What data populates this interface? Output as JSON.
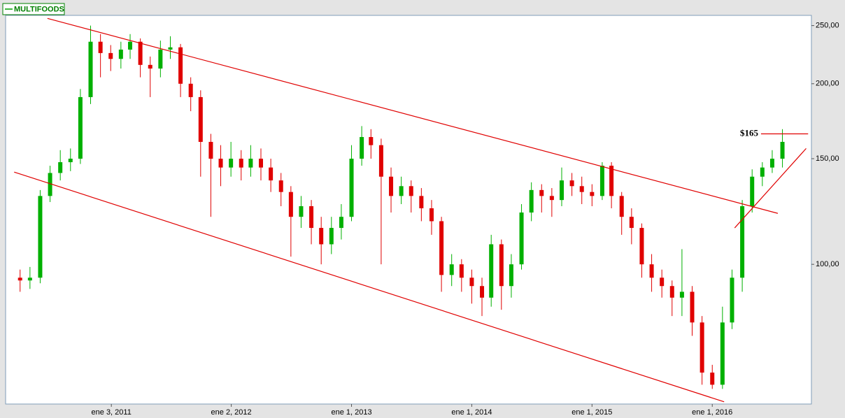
{
  "chart_data": {
    "type": "candlestick",
    "log_scale": true,
    "grid": false,
    "legend": "top-left",
    "series": [
      {
        "name": "MULTIFOODS",
        "color": "#00a000",
        "up_color": "#00b000",
        "down_color": "#e00000",
        "x": [
          "2010-04-01",
          "2010-05-01",
          "2010-06-01",
          "2010-07-01",
          "2010-08-01",
          "2010-09-01",
          "2010-10-01",
          "2010-11-01",
          "2010-12-01",
          "2011-01-01",
          "2011-02-01",
          "2011-03-01",
          "2011-04-01",
          "2011-05-01",
          "2011-06-01",
          "2011-07-01",
          "2011-08-01",
          "2011-09-01",
          "2011-10-01",
          "2011-11-01",
          "2011-12-01",
          "2012-01-01",
          "2012-02-01",
          "2012-03-01",
          "2012-04-01",
          "2012-05-01",
          "2012-06-01",
          "2012-07-01",
          "2012-08-01",
          "2012-09-01",
          "2012-10-01",
          "2012-11-01",
          "2012-12-01",
          "2013-01-01",
          "2013-02-01",
          "2013-03-01",
          "2013-04-01",
          "2013-05-01",
          "2013-06-01",
          "2013-07-01",
          "2013-08-01",
          "2013-09-01",
          "2013-10-01",
          "2013-11-01",
          "2013-12-01",
          "2014-01-01",
          "2014-02-01",
          "2014-03-01",
          "2014-04-01",
          "2014-05-01",
          "2014-06-01",
          "2014-07-01",
          "2014-08-01",
          "2014-09-01",
          "2014-10-01",
          "2014-11-01",
          "2014-12-01",
          "2015-01-01",
          "2015-02-01",
          "2015-03-01",
          "2015-04-01",
          "2015-05-01",
          "2015-06-01",
          "2015-07-01",
          "2015-08-01",
          "2015-09-01",
          "2015-10-01",
          "2015-11-01",
          "2015-12-01",
          "2016-01-01",
          "2016-02-01",
          "2016-03-01",
          "2016-04-01",
          "2016-05-01",
          "2016-06-01",
          "2016-07-01",
          "2016-08-01"
        ],
        "open": [
          95,
          94,
          95,
          130,
          142,
          148,
          150,
          190,
          235,
          225,
          220,
          228,
          235,
          215,
          212,
          228,
          230,
          200,
          190,
          160,
          150,
          145,
          150,
          145,
          150,
          145,
          138,
          132,
          120,
          125,
          115,
          108,
          115,
          120,
          150,
          163,
          158,
          140,
          130,
          135,
          130,
          124,
          118,
          96,
          100,
          95,
          92,
          88,
          108,
          92,
          100,
          122,
          133,
          130,
          128,
          138,
          135,
          132,
          130,
          146,
          130,
          120,
          115,
          100,
          95,
          92,
          88,
          90,
          80,
          66,
          63,
          80,
          95,
          125,
          140,
          145,
          150
        ],
        "high": [
          98,
          99,
          133,
          146,
          155,
          156,
          196,
          250,
          242,
          232,
          235,
          242,
          238,
          222,
          236,
          240,
          233,
          205,
          195,
          165,
          158,
          160,
          155,
          158,
          156,
          150,
          142,
          135,
          130,
          128,
          120,
          120,
          126,
          158,
          170,
          168,
          162,
          145,
          140,
          138,
          134,
          128,
          120,
          104,
          102,
          98,
          95,
          112,
          110,
          104,
          126,
          137,
          136,
          134,
          145,
          142,
          140,
          136,
          148,
          148,
          132,
          124,
          117,
          104,
          98,
          94,
          106,
          92,
          82,
          68,
          85,
          98,
          128,
          144,
          148,
          155,
          168
        ],
        "low": [
          90,
          91,
          93,
          127,
          138,
          143,
          147,
          185,
          205,
          210,
          212,
          220,
          205,
          190,
          205,
          220,
          190,
          180,
          140,
          120,
          135,
          140,
          138,
          140,
          138,
          132,
          125,
          103,
          115,
          108,
          100,
          104,
          110,
          118,
          146,
          150,
          100,
          122,
          126,
          122,
          118,
          112,
          90,
          92,
          90,
          86,
          82,
          85,
          84,
          88,
          98,
          118,
          122,
          120,
          125,
          130,
          126,
          125,
          128,
          124,
          112,
          108,
          95,
          90,
          88,
          82,
          82,
          76,
          63,
          62,
          62,
          78,
          90,
          122,
          135,
          142,
          145
        ],
        "close": [
          94,
          95,
          130,
          142,
          148,
          150,
          190,
          235,
          225,
          220,
          228,
          235,
          215,
          212,
          228,
          230,
          200,
          190,
          160,
          150,
          145,
          150,
          145,
          150,
          145,
          138,
          132,
          120,
          125,
          115,
          108,
          115,
          120,
          150,
          163,
          158,
          140,
          130,
          135,
          130,
          124,
          118,
          96,
          100,
          95,
          92,
          88,
          108,
          92,
          100,
          122,
          133,
          130,
          128,
          138,
          135,
          132,
          130,
          146,
          130,
          120,
          115,
          100,
          95,
          92,
          88,
          90,
          80,
          66,
          63,
          80,
          95,
          125,
          140,
          145,
          150,
          160
        ]
      }
    ],
    "trendlines": [
      {
        "color": "#e00000",
        "x": [
          "2010-06-23",
          "2016-07-18"
        ],
        "y": [
          257,
          121.6
        ]
      },
      {
        "color": "#e00000",
        "x": [
          "2010-03-14",
          "2016-02-06"
        ],
        "y": [
          142.5,
          59
        ]
      },
      {
        "color": "#e00000",
        "x": [
          "2016-03-09",
          "2016-10-12"
        ],
        "y": [
          115,
          156
        ]
      },
      {
        "color": "#e00000",
        "x": [
          "2016-05-28",
          "2016-10-18"
        ],
        "y": [
          165,
          165
        ]
      }
    ],
    "annotations": [
      {
        "text": "$165"
      }
    ],
    "xlim": [
      "2010-02-16",
      "2016-10-28"
    ],
    "xticks": [
      {
        "value": "2011-01-03",
        "label": "ene 3, 2011"
      },
      {
        "value": "2012-01-02",
        "label": "ene 2, 2012"
      },
      {
        "value": "2013-01-01",
        "label": "ene 1, 2013"
      },
      {
        "value": "2014-01-01",
        "label": "ene 1, 2014"
      },
      {
        "value": "2015-01-01",
        "label": "ene 1, 2015"
      },
      {
        "value": "2016-01-01",
        "label": "ene 1, 2016"
      }
    ],
    "ylim": [
      58.5,
      260
    ],
    "yticks": [
      {
        "value": 100,
        "label": "100,00"
      },
      {
        "value": 150,
        "label": "150,00"
      },
      {
        "value": 200,
        "label": "200,00"
      },
      {
        "value": 250,
        "label": "250,00"
      }
    ]
  }
}
